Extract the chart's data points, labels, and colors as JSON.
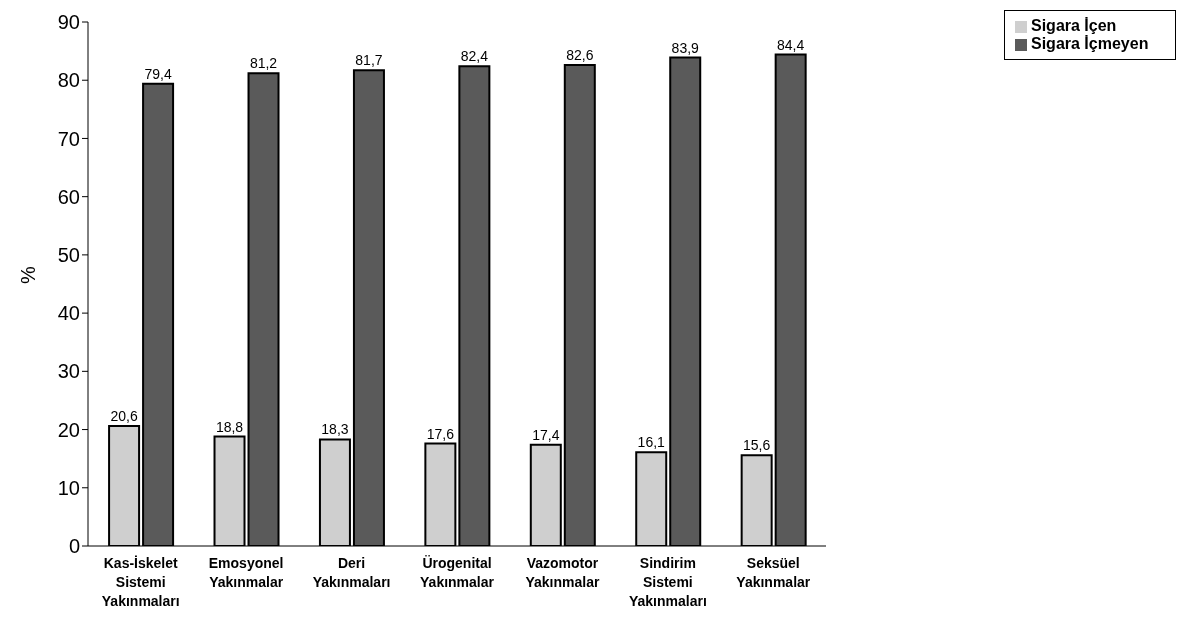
{
  "chart_data": {
    "type": "bar",
    "ylabel": "%",
    "categories": [
      "Kas-İskelet\nSistemi\nYakınmaları",
      "Emosyonel\nYakınmalar",
      "Deri\nYakınmaları",
      "Ürogenital\nYakınmalar",
      "Vazomotor\nYakınmalar",
      "Sindirim\nSistemi\nYakınmaları",
      "Seksüel\nYakınmalar"
    ],
    "series": [
      {
        "name": "Sigara İçen",
        "color": "#cfcfcf",
        "values": [
          20.6,
          18.8,
          18.3,
          17.6,
          17.4,
          16.1,
          15.6
        ],
        "value_labels": [
          "20,6",
          "18,8",
          "18,3",
          "17,6",
          "17,4",
          "16,1",
          "15,6"
        ]
      },
      {
        "name": "Sigara İçmeyen",
        "color": "#5a5a5a",
        "values": [
          79.4,
          81.2,
          81.7,
          82.4,
          82.6,
          83.9,
          84.4
        ],
        "value_labels": [
          "79,4",
          "81,2",
          "81,7",
          "82,4",
          "82,6",
          "83,9",
          "84,4"
        ]
      }
    ],
    "ylim": [
      0,
      90
    ],
    "yticks": [
      0,
      10,
      20,
      30,
      40,
      50,
      60,
      70,
      80,
      90
    ],
    "grid": false,
    "legend": "top right"
  }
}
